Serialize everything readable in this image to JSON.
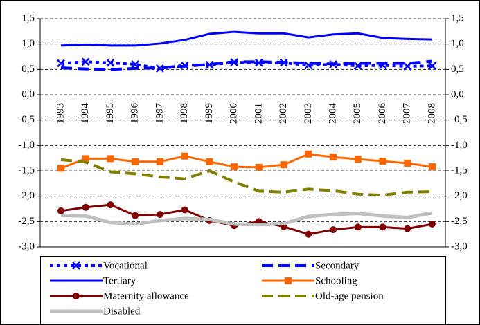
{
  "chart_data": {
    "type": "line",
    "categories": [
      "1993",
      "1994",
      "1995",
      "1996",
      "1997",
      "1998",
      "1999",
      "2000",
      "2001",
      "2002",
      "2003",
      "2004",
      "2005",
      "2006",
      "2007",
      "2008"
    ],
    "ylim": [
      -3.0,
      1.5
    ],
    "yticks": [
      {
        "value": 1.5,
        "label": "1,5"
      },
      {
        "value": 1.0,
        "label": "1,0"
      },
      {
        "value": 0.5,
        "label": "0,5"
      },
      {
        "value": 0.0,
        "label": "0,0"
      },
      {
        "value": -0.5,
        "label": "-0,5"
      },
      {
        "value": -1.0,
        "label": "-1,0"
      },
      {
        "value": -1.5,
        "label": "-1,5"
      },
      {
        "value": -2.0,
        "label": "-2,0"
      },
      {
        "value": -2.5,
        "label": "-2,5"
      },
      {
        "value": -3.0,
        "label": "-3,0"
      }
    ],
    "grid": true,
    "legend": "bottom",
    "series": [
      {
        "name": "Vocational",
        "color": "#0000ff",
        "dash": "dotted",
        "marker": "x",
        "values": [
          0.62,
          0.65,
          0.63,
          0.6,
          0.52,
          0.58,
          0.59,
          0.64,
          0.63,
          0.63,
          0.58,
          0.6,
          0.57,
          0.58,
          0.56,
          0.57
        ]
      },
      {
        "name": "Secondary",
        "color": "#0000ff",
        "dash": "dashed",
        "marker": "none",
        "values": [
          0.53,
          0.51,
          0.5,
          0.52,
          0.53,
          0.56,
          0.6,
          0.65,
          0.65,
          0.64,
          0.62,
          0.61,
          0.62,
          0.62,
          0.62,
          0.66
        ]
      },
      {
        "name": "Tertiary",
        "color": "#0000ff",
        "dash": "solid",
        "marker": "none",
        "values": [
          0.97,
          0.99,
          0.97,
          0.97,
          1.01,
          1.08,
          1.2,
          1.24,
          1.21,
          1.21,
          1.13,
          1.19,
          1.21,
          1.12,
          1.1,
          1.09
        ]
      },
      {
        "name": "Schooling",
        "color": "#ff6600",
        "dash": "solid",
        "marker": "square",
        "values": [
          -1.45,
          -1.26,
          -1.26,
          -1.32,
          -1.32,
          -1.21,
          -1.32,
          -1.42,
          -1.43,
          -1.38,
          -1.17,
          -1.23,
          -1.27,
          -1.31,
          -1.35,
          -1.42
        ]
      },
      {
        "name": "Maternity allowance",
        "color": "#800000",
        "dash": "solid",
        "marker": "circle",
        "values": [
          -2.29,
          -2.22,
          -2.17,
          -2.38,
          -2.36,
          -2.27,
          -2.48,
          -2.58,
          -2.5,
          -2.6,
          -2.75,
          -2.66,
          -2.61,
          -2.61,
          -2.64,
          -2.55
        ]
      },
      {
        "name": "Old-age pension",
        "color": "#808000",
        "dash": "dashed",
        "marker": "none",
        "values": [
          -1.28,
          -1.33,
          -1.52,
          -1.56,
          -1.62,
          -1.66,
          -1.5,
          -1.72,
          -1.9,
          -1.92,
          -1.86,
          -1.89,
          -1.96,
          -1.98,
          -1.92,
          -1.91
        ]
      },
      {
        "name": "Disabled",
        "color": "#c0c0c0",
        "dash": "solid",
        "marker": "none",
        "values": [
          -2.38,
          -2.39,
          -2.52,
          -2.55,
          -2.48,
          -2.44,
          -2.46,
          -2.55,
          -2.56,
          -2.54,
          -2.4,
          -2.36,
          -2.34,
          -2.39,
          -2.42,
          -2.33
        ]
      }
    ]
  }
}
